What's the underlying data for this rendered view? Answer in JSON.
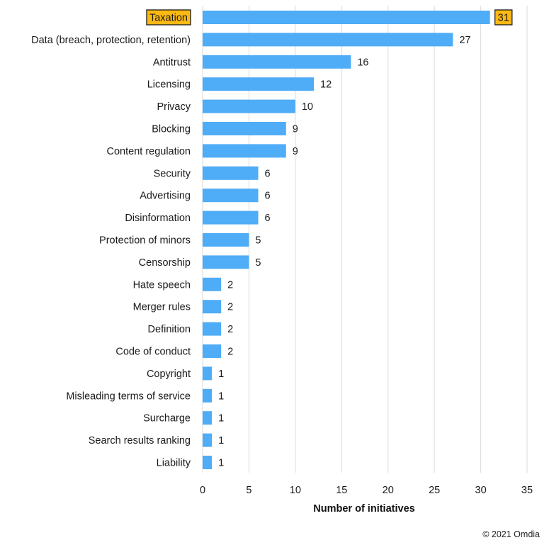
{
  "chart_data": {
    "type": "bar",
    "orientation": "horizontal",
    "categories": [
      "Taxation",
      "Data (breach, protection, retention)",
      "Antitrust",
      "Licensing",
      "Privacy",
      "Blocking",
      "Content regulation",
      "Security",
      "Advertising",
      "Disinformation",
      "Protection of minors",
      "Censorship",
      "Hate speech",
      "Merger rules",
      "Definition",
      "Code of conduct",
      "Copyright",
      "Misleading terms of service",
      "Surcharge",
      "Search results ranking",
      "Liability"
    ],
    "values": [
      31,
      27,
      16,
      12,
      10,
      9,
      9,
      6,
      6,
      6,
      5,
      5,
      2,
      2,
      2,
      2,
      1,
      1,
      1,
      1,
      1
    ],
    "xlabel": "Number of initiatives",
    "ylabel": "",
    "xlim": [
      0,
      35
    ],
    "xticks": [
      0,
      5,
      10,
      15,
      20,
      25,
      30,
      35
    ],
    "grid": "vertical",
    "highlighted_category": "Taxation"
  },
  "colors": {
    "bar": "#4facf7",
    "grid": "#d9d9d9",
    "highlight_fill": "#fdb913",
    "highlight_border": "#1a1a1a"
  },
  "footer": {
    "copyright": "© 2021 Omdia"
  }
}
